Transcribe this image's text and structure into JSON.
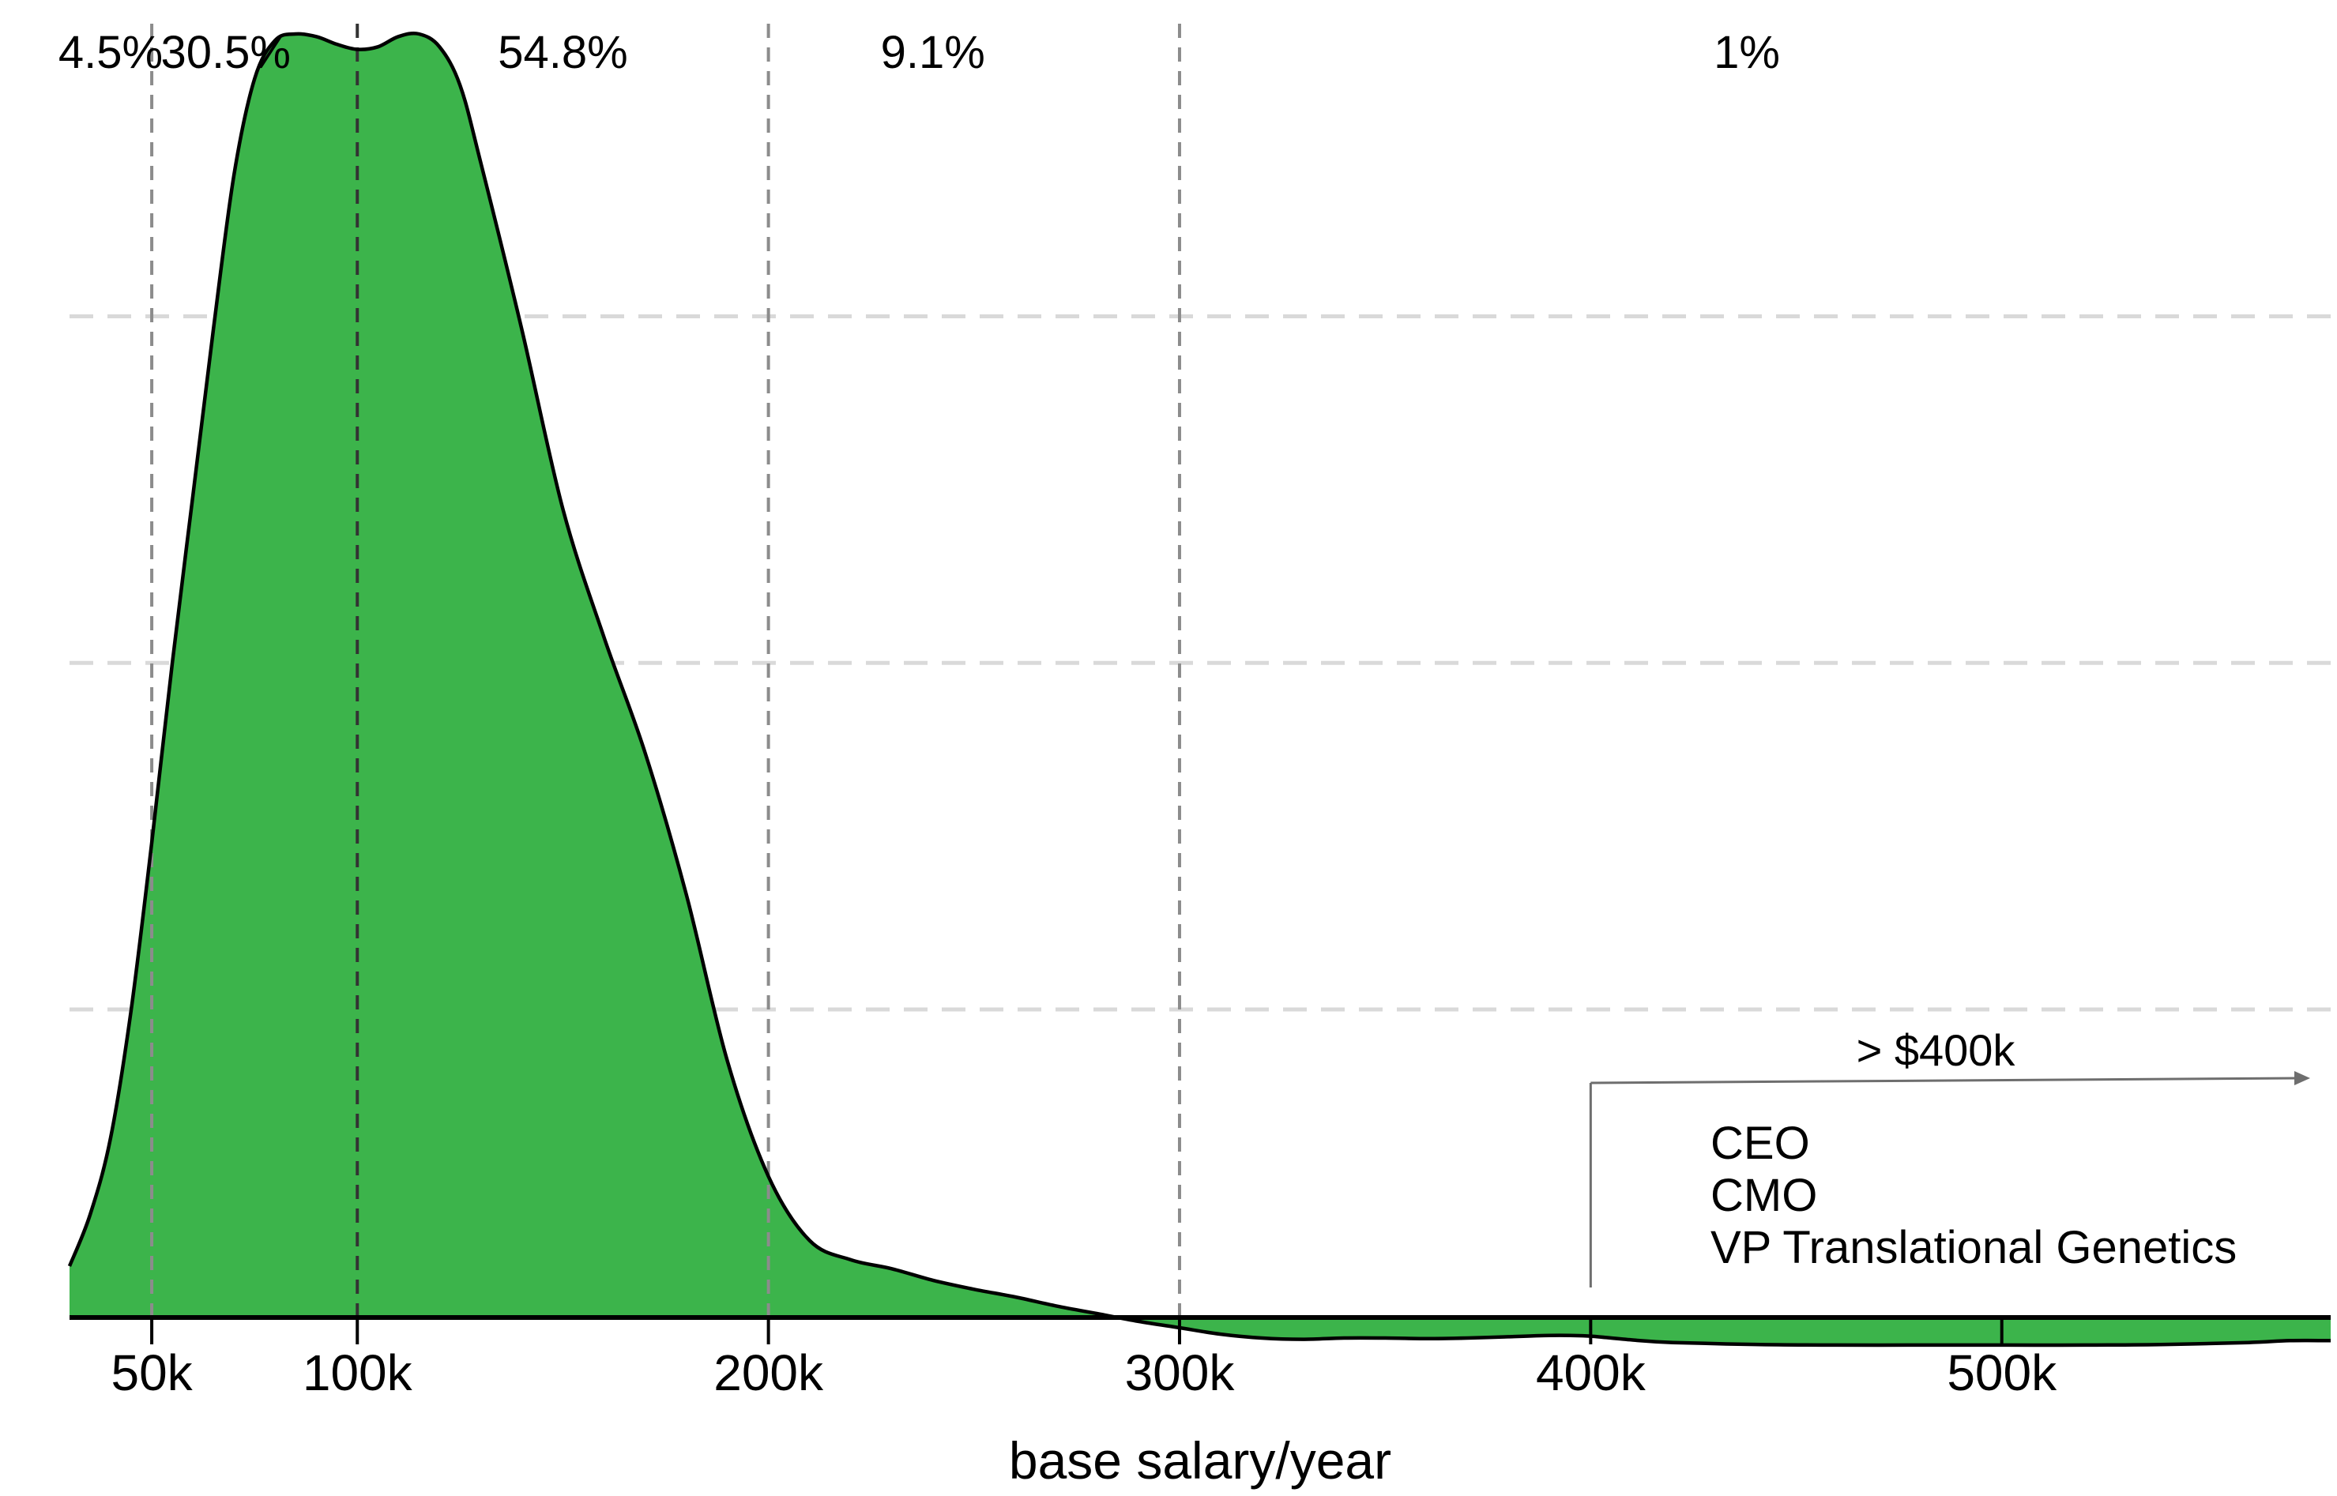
{
  "chart_data": {
    "type": "area",
    "title": "",
    "xlabel": "base salary/year",
    "ylabel": "",
    "xlim": [
      30000,
      580000
    ],
    "x_ticks": [
      {
        "value": 50000,
        "label": "50k"
      },
      {
        "value": 100000,
        "label": "100k"
      },
      {
        "value": 200000,
        "label": "200k"
      },
      {
        "value": 300000,
        "label": "300k"
      },
      {
        "value": 400000,
        "label": "400k"
      },
      {
        "value": 500000,
        "label": "500k"
      }
    ],
    "y_axis_visible": false,
    "grid": {
      "horizontal": true,
      "vertical": false,
      "style": "dashed"
    },
    "fill_color": "#3cb44b",
    "line_color": "#000000",
    "density_curve": {
      "x": [
        30000,
        35000,
        40000,
        45000,
        50000,
        55000,
        60000,
        65000,
        70000,
        75000,
        80000,
        85000,
        90000,
        95000,
        100000,
        105000,
        110000,
        115000,
        120000,
        125000,
        130000,
        140000,
        150000,
        160000,
        170000,
        180000,
        190000,
        200000,
        210000,
        220000,
        230000,
        240000,
        250000,
        260000,
        270000,
        280000,
        290000,
        300000,
        310000,
        320000,
        330000,
        340000,
        350000,
        360000,
        370000,
        380000,
        390000,
        395000,
        400000,
        410000,
        420000,
        440000,
        460000,
        480000,
        500000,
        520000,
        540000,
        560000,
        570000,
        580000
      ],
      "y": [
        0.04,
        0.08,
        0.14,
        0.24,
        0.37,
        0.51,
        0.64,
        0.77,
        0.89,
        0.965,
        0.995,
        1.0,
        0.998,
        0.992,
        0.988,
        0.99,
        0.998,
        1.0,
        0.99,
        0.96,
        0.9,
        0.77,
        0.63,
        0.53,
        0.44,
        0.33,
        0.2,
        0.11,
        0.06,
        0.045,
        0.038,
        0.029,
        0.022,
        0.016,
        0.009,
        0.003,
        -0.003,
        -0.008,
        -0.013,
        -0.016,
        -0.017,
        -0.016,
        -0.016,
        -0.0165,
        -0.016,
        -0.015,
        -0.014,
        -0.014,
        -0.0145,
        -0.0175,
        -0.0195,
        -0.021,
        -0.0215,
        -0.0215,
        -0.0215,
        -0.0215,
        -0.021,
        -0.0195,
        -0.018,
        -0.018
      ]
    },
    "y_gridlines": [
      0.24,
      0.51,
      0.78
    ],
    "dividers": [
      50000,
      100000,
      200000,
      300000
    ],
    "dark_dividers": [
      100000
    ],
    "segment_labels": [
      {
        "x": 40000,
        "label": "4.5%"
      },
      {
        "x": 68000,
        "label": "30.5%"
      },
      {
        "x": 150000,
        "label": "54.8%"
      },
      {
        "x": 240000,
        "label": "9.1%"
      },
      {
        "x": 438000,
        "label": "1%"
      }
    ],
    "annotation": {
      "header": "> $400k",
      "arrow_from": 400000,
      "arrow_to": 575000,
      "items": [
        "CEO",
        "CMO",
        "VP Translational Genetics"
      ]
    }
  }
}
